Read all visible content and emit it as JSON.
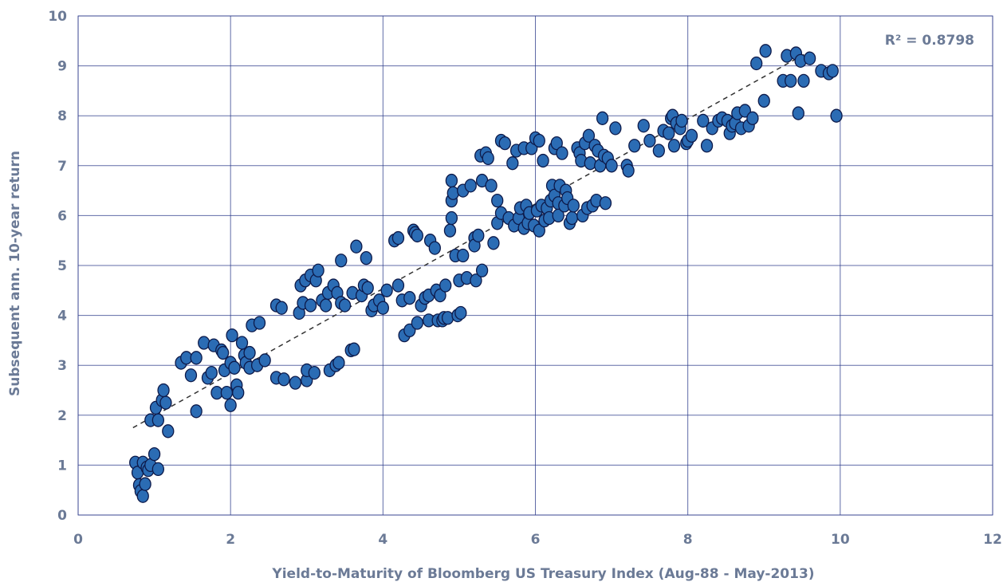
{
  "chart_data": {
    "type": "scatter",
    "title": "",
    "xlabel": "Yield-to-Maturity of Bloomberg US Treasury Index (Aug-88 - May-2013)",
    "ylabel": "Subsequent ann. 10-year return",
    "xlim": [
      0,
      12
    ],
    "ylim": [
      0,
      10
    ],
    "x_ticks": [
      "0",
      "2",
      "4",
      "6",
      "8",
      "10",
      "12"
    ],
    "y_ticks": [
      "0",
      "1",
      "2",
      "3",
      "4",
      "5",
      "6",
      "7",
      "8",
      "9",
      "10"
    ],
    "grid": true,
    "annotation": "R² = 0.8798",
    "trendline": {
      "x": [
        0.72,
        9.55
      ],
      "y": [
        1.75,
        9.25
      ]
    },
    "colors": {
      "point_fill": "#2b6cb4",
      "point_stroke": "#0d1a4a",
      "grid": "#2b3a8a",
      "text": "#6b7a96"
    },
    "points": [
      [
        0.75,
        1.05
      ],
      [
        0.78,
        0.85
      ],
      [
        0.8,
        0.6
      ],
      [
        0.82,
        0.48
      ],
      [
        0.85,
        0.38
      ],
      [
        0.88,
        0.62
      ],
      [
        0.85,
        1.05
      ],
      [
        0.9,
        0.95
      ],
      [
        0.92,
        0.9
      ],
      [
        0.95,
        1.0
      ],
      [
        1.0,
        1.22
      ],
      [
        1.05,
        0.92
      ],
      [
        0.95,
        1.9
      ],
      [
        1.05,
        1.9
      ],
      [
        1.02,
        2.15
      ],
      [
        1.1,
        2.3
      ],
      [
        1.15,
        2.25
      ],
      [
        1.12,
        2.5
      ],
      [
        1.18,
        1.68
      ],
      [
        1.35,
        3.05
      ],
      [
        1.42,
        3.15
      ],
      [
        1.48,
        2.8
      ],
      [
        1.55,
        3.15
      ],
      [
        1.55,
        2.08
      ],
      [
        1.65,
        3.45
      ],
      [
        1.7,
        2.75
      ],
      [
        1.75,
        2.85
      ],
      [
        1.78,
        3.4
      ],
      [
        1.82,
        2.45
      ],
      [
        1.88,
        3.3
      ],
      [
        1.9,
        3.25
      ],
      [
        1.92,
        2.9
      ],
      [
        1.95,
        2.45
      ],
      [
        2.0,
        2.2
      ],
      [
        2.0,
        3.05
      ],
      [
        2.02,
        3.6
      ],
      [
        2.05,
        2.95
      ],
      [
        2.08,
        2.6
      ],
      [
        2.1,
        2.45
      ],
      [
        2.15,
        3.45
      ],
      [
        2.18,
        3.2
      ],
      [
        2.2,
        3.05
      ],
      [
        2.25,
        3.25
      ],
      [
        2.25,
        2.95
      ],
      [
        2.28,
        3.8
      ],
      [
        2.35,
        3.0
      ],
      [
        2.38,
        3.85
      ],
      [
        2.45,
        3.1
      ],
      [
        2.6,
        2.75
      ],
      [
        2.6,
        4.2
      ],
      [
        2.67,
        4.15
      ],
      [
        2.7,
        2.72
      ],
      [
        2.85,
        2.65
      ],
      [
        2.9,
        4.05
      ],
      [
        2.92,
        4.6
      ],
      [
        2.95,
        4.25
      ],
      [
        2.98,
        4.7
      ],
      [
        3.0,
        2.7
      ],
      [
        3.0,
        2.9
      ],
      [
        3.05,
        4.2
      ],
      [
        3.05,
        4.8
      ],
      [
        3.1,
        2.85
      ],
      [
        3.12,
        4.7
      ],
      [
        3.15,
        4.9
      ],
      [
        3.2,
        4.3
      ],
      [
        3.25,
        4.2
      ],
      [
        3.28,
        4.45
      ],
      [
        3.3,
        2.9
      ],
      [
        3.35,
        4.6
      ],
      [
        3.38,
        3.0
      ],
      [
        3.4,
        4.45
      ],
      [
        3.42,
        3.05
      ],
      [
        3.45,
        4.25
      ],
      [
        3.45,
        5.1
      ],
      [
        3.5,
        4.2
      ],
      [
        3.58,
        3.3
      ],
      [
        3.6,
        4.45
      ],
      [
        3.62,
        3.32
      ],
      [
        3.65,
        5.38
      ],
      [
        3.72,
        4.4
      ],
      [
        3.75,
        4.6
      ],
      [
        3.78,
        5.15
      ],
      [
        3.8,
        4.55
      ],
      [
        3.85,
        4.1
      ],
      [
        3.88,
        4.2
      ],
      [
        3.95,
        4.3
      ],
      [
        4.0,
        4.15
      ],
      [
        4.05,
        4.5
      ],
      [
        4.15,
        5.5
      ],
      [
        4.2,
        5.55
      ],
      [
        4.2,
        4.6
      ],
      [
        4.25,
        4.3
      ],
      [
        4.28,
        3.6
      ],
      [
        4.35,
        4.35
      ],
      [
        4.35,
        3.7
      ],
      [
        4.4,
        5.7
      ],
      [
        4.42,
        5.65
      ],
      [
        4.45,
        5.6
      ],
      [
        4.45,
        3.85
      ],
      [
        4.5,
        4.2
      ],
      [
        4.55,
        4.35
      ],
      [
        4.6,
        4.4
      ],
      [
        4.6,
        3.9
      ],
      [
        4.62,
        5.5
      ],
      [
        4.68,
        5.35
      ],
      [
        4.7,
        4.5
      ],
      [
        4.72,
        3.9
      ],
      [
        4.75,
        4.4
      ],
      [
        4.78,
        3.9
      ],
      [
        4.8,
        3.95
      ],
      [
        4.82,
        4.6
      ],
      [
        4.85,
        3.95
      ],
      [
        4.88,
        5.7
      ],
      [
        4.9,
        5.95
      ],
      [
        4.9,
        6.7
      ],
      [
        4.9,
        6.3
      ],
      [
        4.92,
        6.45
      ],
      [
        4.95,
        5.2
      ],
      [
        4.98,
        4.0
      ],
      [
        5.0,
        4.7
      ],
      [
        5.02,
        4.05
      ],
      [
        5.05,
        5.2
      ],
      [
        5.05,
        6.5
      ],
      [
        5.1,
        4.75
      ],
      [
        5.15,
        6.6
      ],
      [
        5.2,
        5.55
      ],
      [
        5.2,
        5.4
      ],
      [
        5.22,
        4.7
      ],
      [
        5.25,
        5.6
      ],
      [
        5.28,
        7.2
      ],
      [
        5.3,
        4.9
      ],
      [
        5.3,
        6.7
      ],
      [
        5.35,
        7.25
      ],
      [
        5.38,
        7.15
      ],
      [
        5.42,
        6.6
      ],
      [
        5.45,
        5.45
      ],
      [
        5.5,
        6.3
      ],
      [
        5.5,
        5.85
      ],
      [
        5.55,
        7.5
      ],
      [
        5.55,
        6.05
      ],
      [
        5.6,
        7.45
      ],
      [
        5.65,
        5.95
      ],
      [
        5.7,
        7.05
      ],
      [
        5.72,
        5.8
      ],
      [
        5.75,
        7.3
      ],
      [
        5.78,
        5.95
      ],
      [
        5.8,
        6.15
      ],
      [
        5.85,
        7.35
      ],
      [
        5.85,
        5.75
      ],
      [
        5.88,
        6.2
      ],
      [
        5.9,
        5.85
      ],
      [
        5.92,
        6.05
      ],
      [
        5.95,
        7.35
      ],
      [
        5.98,
        5.8
      ],
      [
        6.0,
        7.55
      ],
      [
        6.02,
        6.1
      ],
      [
        6.05,
        5.7
      ],
      [
        6.05,
        7.5
      ],
      [
        6.08,
        6.2
      ],
      [
        6.1,
        7.1
      ],
      [
        6.12,
        5.9
      ],
      [
        6.15,
        6.15
      ],
      [
        6.18,
        5.95
      ],
      [
        6.2,
        6.3
      ],
      [
        6.22,
        6.6
      ],
      [
        6.25,
        7.35
      ],
      [
        6.25,
        6.4
      ],
      [
        6.28,
        7.45
      ],
      [
        6.3,
        6.25
      ],
      [
        6.3,
        6.0
      ],
      [
        6.32,
        6.6
      ],
      [
        6.35,
        7.25
      ],
      [
        6.38,
        6.2
      ],
      [
        6.4,
        6.5
      ],
      [
        6.42,
        6.35
      ],
      [
        6.45,
        5.85
      ],
      [
        6.48,
        5.95
      ],
      [
        6.5,
        6.2
      ],
      [
        6.55,
        7.35
      ],
      [
        6.58,
        7.25
      ],
      [
        6.6,
        7.1
      ],
      [
        6.62,
        6.0
      ],
      [
        6.65,
        7.45
      ],
      [
        6.68,
        6.15
      ],
      [
        6.7,
        7.6
      ],
      [
        6.72,
        7.05
      ],
      [
        6.75,
        6.2
      ],
      [
        6.78,
        7.4
      ],
      [
        6.8,
        6.3
      ],
      [
        6.82,
        7.3
      ],
      [
        6.85,
        7.0
      ],
      [
        6.88,
        7.95
      ],
      [
        6.9,
        7.2
      ],
      [
        6.92,
        6.25
      ],
      [
        6.95,
        7.15
      ],
      [
        7.0,
        7.0
      ],
      [
        7.05,
        7.75
      ],
      [
        7.2,
        7.0
      ],
      [
        7.22,
        6.9
      ],
      [
        7.3,
        7.4
      ],
      [
        7.42,
        7.8
      ],
      [
        7.5,
        7.5
      ],
      [
        7.62,
        7.3
      ],
      [
        7.68,
        7.7
      ],
      [
        7.75,
        7.65
      ],
      [
        7.78,
        7.95
      ],
      [
        7.8,
        8.0
      ],
      [
        7.82,
        7.4
      ],
      [
        7.85,
        7.85
      ],
      [
        7.9,
        7.75
      ],
      [
        7.92,
        7.9
      ],
      [
        7.98,
        7.45
      ],
      [
        8.0,
        7.5
      ],
      [
        8.05,
        7.6
      ],
      [
        8.2,
        7.9
      ],
      [
        8.25,
        7.4
      ],
      [
        8.32,
        7.75
      ],
      [
        8.4,
        7.9
      ],
      [
        8.45,
        7.95
      ],
      [
        8.52,
        7.9
      ],
      [
        8.55,
        7.65
      ],
      [
        8.58,
        7.8
      ],
      [
        8.62,
        7.85
      ],
      [
        8.65,
        8.05
      ],
      [
        8.7,
        7.75
      ],
      [
        8.75,
        8.1
      ],
      [
        8.8,
        7.8
      ],
      [
        8.85,
        7.95
      ],
      [
        8.9,
        9.05
      ],
      [
        9.0,
        8.3
      ],
      [
        9.02,
        9.3
      ],
      [
        9.25,
        8.7
      ],
      [
        9.3,
        9.2
      ],
      [
        9.35,
        8.7
      ],
      [
        9.42,
        9.25
      ],
      [
        9.45,
        8.05
      ],
      [
        9.48,
        9.1
      ],
      [
        9.52,
        8.7
      ],
      [
        9.6,
        9.15
      ],
      [
        9.75,
        8.9
      ],
      [
        9.85,
        8.85
      ],
      [
        9.9,
        8.9
      ],
      [
        9.95,
        8.0
      ]
    ]
  }
}
